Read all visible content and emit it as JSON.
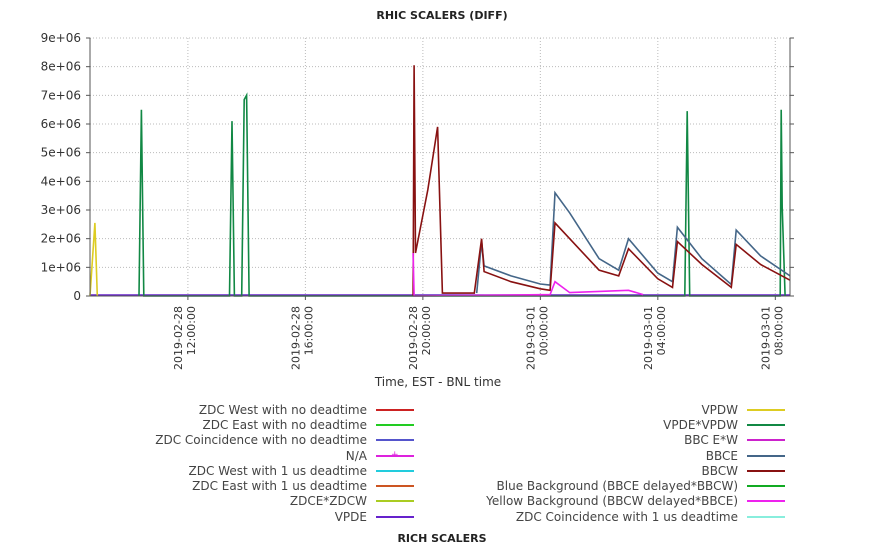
{
  "header": {
    "title": "RHIC SCALERS (DIFF)"
  },
  "footer": {
    "title": "RICH SCALERS"
  },
  "chart_data": {
    "type": "line",
    "title": "RHIC SCALERS (DIFF)",
    "xlabel": "Time, EST - BNL time",
    "ylabel": "",
    "ylim": [
      0,
      9000000
    ],
    "xlim": [
      "2019-02-28 08:40:00",
      "2019-03-01 08:30:00"
    ],
    "y_ticks": [
      0,
      1000000,
      2000000,
      3000000,
      4000000,
      5000000,
      6000000,
      7000000,
      8000000,
      9000000
    ],
    "y_tick_labels": [
      "0",
      "1e+06",
      "2e+06",
      "3e+06",
      "4e+06",
      "5e+06",
      "6e+06",
      "7e+06",
      "8e+06",
      "9e+06"
    ],
    "x_ticks": [
      "2019-02-28 12:00:00",
      "2019-02-28 16:00:00",
      "2019-02-28 20:00:00",
      "2019-03-01 00:00:00",
      "2019-03-01 04:00:00",
      "2019-03-01 08:00:00"
    ],
    "x_tick_labels": [
      [
        "2019-02-28",
        "12:00:00"
      ],
      [
        "2019-02-28",
        "16:00:00"
      ],
      [
        "2019-02-28",
        "20:00:00"
      ],
      [
        "2019-03-01",
        "00:00:00"
      ],
      [
        "2019-03-01",
        "04:00:00"
      ],
      [
        "2019-03-01",
        "08:00:00"
      ]
    ],
    "grid": true,
    "legend_position": "bottom",
    "series": [
      {
        "name": "ZDC West with no deadtime",
        "color": "#cc2222",
        "points": []
      },
      {
        "name": "ZDC East with no deadtime",
        "color": "#22cc22",
        "points": []
      },
      {
        "name": "ZDC Coincidence with no deadtime",
        "color": "#5555cc",
        "points": []
      },
      {
        "name": "N/A",
        "color": "#dd22dd",
        "marker": "+",
        "points": []
      },
      {
        "name": "ZDC West with 1 us deadtime",
        "color": "#22ccdd",
        "points": []
      },
      {
        "name": "ZDC East with 1 us deadtime",
        "color": "#cc5522",
        "points": []
      },
      {
        "name": "ZDCE*ZDCW",
        "color": "#aacc22",
        "points": []
      },
      {
        "name": "VPDE",
        "color": "#6622cc",
        "points": []
      },
      {
        "name": "VPDW",
        "color": "#ddcc22",
        "points": [
          [
            "2019-02-28 08:40:00",
            0
          ],
          [
            "2019-02-28 08:50:00",
            2550000
          ],
          [
            "2019-02-28 08:55:00",
            0
          ]
        ]
      },
      {
        "name": "VPDE*VPDW",
        "color": "#118844",
        "points": [
          [
            "2019-02-28 10:20:00",
            0
          ],
          [
            "2019-02-28 10:25:00",
            6500000
          ],
          [
            "2019-02-28 10:30:00",
            0
          ],
          [
            "2019-02-28 13:25:00",
            0
          ],
          [
            "2019-02-28 13:30:00",
            6100000
          ],
          [
            "2019-02-28 13:35:00",
            0
          ],
          [
            "2019-02-28 13:50:00",
            0
          ],
          [
            "2019-02-28 13:55:00",
            6850000
          ],
          [
            "2019-02-28 14:00:00",
            7000000
          ],
          [
            "2019-02-28 14:05:00",
            0
          ],
          [
            "2019-03-01 04:55:00",
            0
          ],
          [
            "2019-03-01 05:00:00",
            6450000
          ],
          [
            "2019-03-01 05:05:00",
            0
          ],
          [
            "2019-03-01 08:10:00",
            0
          ],
          [
            "2019-03-01 08:12:00",
            6500000
          ],
          [
            "2019-03-01 08:14:00",
            3100000
          ],
          [
            "2019-03-01 08:20:00",
            0
          ]
        ]
      },
      {
        "name": "BBC E*W",
        "color": "#cc22cc",
        "points": []
      },
      {
        "name": "BBCE",
        "color": "#446688",
        "points": [
          [
            "2019-02-28 21:50:00",
            100000
          ],
          [
            "2019-02-28 22:00:00",
            1900000
          ],
          [
            "2019-02-28 22:05:00",
            1050000
          ],
          [
            "2019-02-28 23:00:00",
            700000
          ],
          [
            "2019-03-01 00:00:00",
            420000
          ],
          [
            "2019-03-01 00:20:00",
            380000
          ],
          [
            "2019-03-01 00:30:00",
            3600000
          ],
          [
            "2019-03-01 01:00:00",
            2900000
          ],
          [
            "2019-03-01 02:00:00",
            1300000
          ],
          [
            "2019-03-01 02:40:00",
            900000
          ],
          [
            "2019-03-01 03:00:00",
            2000000
          ],
          [
            "2019-03-01 04:00:00",
            800000
          ],
          [
            "2019-03-01 04:30:00",
            500000
          ],
          [
            "2019-03-01 04:40:00",
            2400000
          ],
          [
            "2019-03-01 05:30:00",
            1300000
          ],
          [
            "2019-03-01 06:30:00",
            400000
          ],
          [
            "2019-03-01 06:40:00",
            2300000
          ],
          [
            "2019-03-01 07:30:00",
            1400000
          ],
          [
            "2019-03-01 08:30:00",
            700000
          ]
        ]
      },
      {
        "name": "BBCW",
        "color": "#881111",
        "points": [
          [
            "2019-02-28 19:40:00",
            0
          ],
          [
            "2019-02-28 19:42:00",
            8050000
          ],
          [
            "2019-02-28 19:45:00",
            1500000
          ],
          [
            "2019-02-28 20:10:00",
            3700000
          ],
          [
            "2019-02-28 20:30:00",
            5900000
          ],
          [
            "2019-02-28 20:40:00",
            100000
          ],
          [
            "2019-02-28 21:45:00",
            100000
          ],
          [
            "2019-02-28 22:00:00",
            2000000
          ],
          [
            "2019-02-28 22:05:00",
            850000
          ],
          [
            "2019-02-28 23:00:00",
            500000
          ],
          [
            "2019-03-01 00:00:00",
            250000
          ],
          [
            "2019-03-01 00:20:00",
            200000
          ],
          [
            "2019-03-01 00:30:00",
            2550000
          ],
          [
            "2019-03-01 01:00:00",
            2000000
          ],
          [
            "2019-03-01 02:00:00",
            900000
          ],
          [
            "2019-03-01 02:40:00",
            700000
          ],
          [
            "2019-03-01 03:00:00",
            1650000
          ],
          [
            "2019-03-01 04:00:00",
            600000
          ],
          [
            "2019-03-01 04:30:00",
            300000
          ],
          [
            "2019-03-01 04:40:00",
            1900000
          ],
          [
            "2019-03-01 05:30:00",
            1100000
          ],
          [
            "2019-03-01 06:30:00",
            300000
          ],
          [
            "2019-03-01 06:40:00",
            1800000
          ],
          [
            "2019-03-01 07:30:00",
            1100000
          ],
          [
            "2019-03-01 08:30:00",
            550000
          ]
        ]
      },
      {
        "name": "Blue Background (BBCE delayed*BBCW)",
        "color": "#11aa22",
        "points": []
      },
      {
        "name": "Yellow Background (BBCW delayed*BBCE)",
        "color": "#ee22ee",
        "points": [
          [
            "2019-02-28 19:40:00",
            1500000
          ],
          [
            "2019-02-28 19:42:00",
            0
          ],
          [
            "2019-03-01 00:20:00",
            50000
          ],
          [
            "2019-03-01 00:30:00",
            500000
          ],
          [
            "2019-03-01 01:00:00",
            120000
          ],
          [
            "2019-03-01 03:00:00",
            200000
          ],
          [
            "2019-03-01 03:30:00",
            50000
          ]
        ]
      },
      {
        "name": "ZDC Coincidence with 1 us deadtime",
        "color": "#88eedd",
        "points": []
      }
    ]
  },
  "legend": {
    "left": [
      {
        "label": "ZDC West with no deadtime",
        "color": "#cc2222"
      },
      {
        "label": "ZDC East with no deadtime",
        "color": "#22cc22"
      },
      {
        "label": "ZDC Coincidence with no deadtime",
        "color": "#5555cc"
      },
      {
        "label": "N/A",
        "color": "#dd22dd",
        "marker": "+"
      },
      {
        "label": "ZDC West with 1 us deadtime",
        "color": "#22ccdd"
      },
      {
        "label": "ZDC East with 1 us deadtime",
        "color": "#cc5522"
      },
      {
        "label": "ZDCE*ZDCW",
        "color": "#aacc22"
      },
      {
        "label": "VPDE",
        "color": "#6622cc"
      }
    ],
    "right": [
      {
        "label": "VPDW",
        "color": "#ddcc22"
      },
      {
        "label": "VPDE*VPDW",
        "color": "#118844"
      },
      {
        "label": "BBC E*W",
        "color": "#cc22cc"
      },
      {
        "label": "BBCE",
        "color": "#446688"
      },
      {
        "label": "BBCW",
        "color": "#881111"
      },
      {
        "label": "Blue Background (BBCE delayed*BBCW)",
        "color": "#11aa22"
      },
      {
        "label": "Yellow Background (BBCW delayed*BBCE)",
        "color": "#ee22ee"
      },
      {
        "label": "ZDC Coincidence with 1 us deadtime",
        "color": "#88eedd"
      }
    ]
  }
}
